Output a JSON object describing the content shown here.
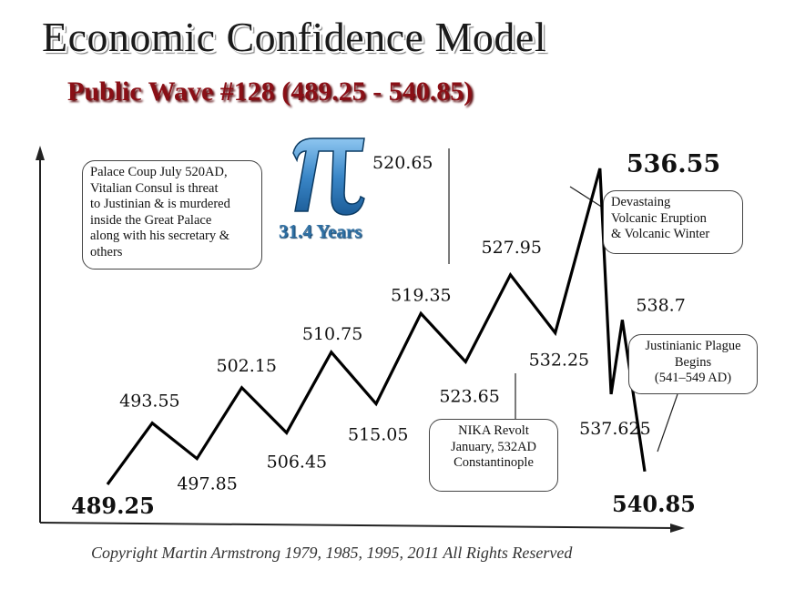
{
  "title": "Economic Confidence Model",
  "subtitle": "Public Wave #128 (489.25 - 540.85)",
  "copyright": "Copyright Martin Armstrong 1979, 1985, 1995, 2011 All Rights Reserved",
  "pi_label": "31.4 Years",
  "colors": {
    "line": "#000000",
    "subtitle": "#8a0f16",
    "pi_blue": "#2e6fa3"
  },
  "icons": [
    "pi-symbol-icon"
  ],
  "callouts": {
    "palace_coup": {
      "lines": [
        "Palace Coup July 520AD,",
        "Vitalian Consul is threat",
        "to Justinian & is murdered",
        "inside the Great Palace",
        "along with his secretary &",
        "others"
      ]
    },
    "volcanic": {
      "lines": [
        "Devastaing",
        "Volcanic Eruption",
        "& Volcanic Winter"
      ]
    },
    "plague": {
      "lines": [
        "Justinianic Plague",
        "Begins",
        "(541–549 AD)"
      ]
    },
    "nika": {
      "lines": [
        "NIKA Revolt",
        "January, 532AD",
        "Constantinople"
      ]
    }
  },
  "chart_data": {
    "type": "line",
    "title": "Economic Confidence Model",
    "subtitle": "Public Wave #128 (489.25 - 540.85)",
    "xlabel": "",
    "ylabel": "",
    "grid": false,
    "legend": "none",
    "points": [
      {
        "x": 489.25,
        "label": "489.25",
        "kind": "trough",
        "level": 0.0
      },
      {
        "x": 493.55,
        "label": "493.55",
        "kind": "peak",
        "level": 0.19
      },
      {
        "x": 497.85,
        "label": "497.85",
        "kind": "trough",
        "level": 0.08
      },
      {
        "x": 502.15,
        "label": "502.15",
        "kind": "peak",
        "level": 0.3
      },
      {
        "x": 506.45,
        "label": "506.45",
        "kind": "trough",
        "level": 0.16
      },
      {
        "x": 510.75,
        "label": "510.75",
        "kind": "peak",
        "level": 0.41
      },
      {
        "x": 515.05,
        "label": "515.05",
        "kind": "trough",
        "level": 0.25
      },
      {
        "x": 519.35,
        "label": "519.35",
        "kind": "peak",
        "level": 0.53
      },
      {
        "x": 523.65,
        "label": "523.65",
        "kind": "trough",
        "level": 0.38
      },
      {
        "x": 527.95,
        "label": "527.95",
        "kind": "peak",
        "level": 0.65
      },
      {
        "x": 532.25,
        "label": "532.25",
        "kind": "trough",
        "level": 0.47
      },
      {
        "x": 536.55,
        "label": "536.55",
        "kind": "peak",
        "level": 0.98
      },
      {
        "x": 537.625,
        "label": "537.625",
        "kind": "trough",
        "level": 0.28
      },
      {
        "x": 538.7,
        "label": "538.7",
        "kind": "peak",
        "level": 0.51
      },
      {
        "x": 540.85,
        "label": "540.85",
        "kind": "trough",
        "level": 0.04
      }
    ],
    "annotations": [
      {
        "label": "520.65",
        "x": 520.65,
        "note": "pi turning point"
      }
    ]
  }
}
